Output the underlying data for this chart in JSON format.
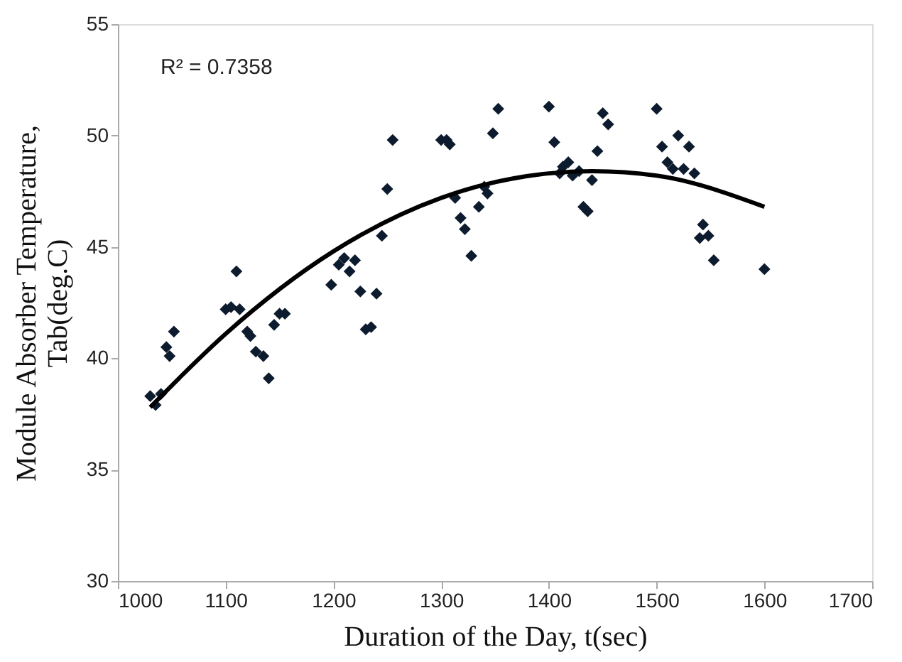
{
  "chart_data": {
    "type": "scatter",
    "xlabel": "Duration of the Day, t(sec)",
    "ylabel": "Module Absorber Temperature,\nTab(deg.C)",
    "xlim": [
      1000,
      1700
    ],
    "xticks": [
      1000,
      1100,
      1200,
      1300,
      1400,
      1500,
      1600,
      1700
    ],
    "ylim": [
      30,
      55
    ],
    "yticks": [
      30,
      35,
      40,
      45,
      50,
      55
    ],
    "grid": false,
    "marker": "diamond",
    "annotations": [
      "R² = 0.7358"
    ],
    "series": [
      {
        "color": "#0d1b2e",
        "x": [
          1030,
          1035,
          1040,
          1045,
          1048,
          1052,
          1100,
          1105,
          1110,
          1113,
          1120,
          1123,
          1128,
          1135,
          1140,
          1145,
          1150,
          1155,
          1198,
          1205,
          1210,
          1215,
          1220,
          1225,
          1230,
          1235,
          1240,
          1245,
          1250,
          1255,
          1300,
          1305,
          1308,
          1313,
          1318,
          1322,
          1328,
          1335,
          1340,
          1343,
          1348,
          1353,
          1400,
          1405,
          1410,
          1413,
          1418,
          1422,
          1428,
          1432,
          1436,
          1440,
          1445,
          1450,
          1455,
          1500,
          1505,
          1510,
          1515,
          1520,
          1525,
          1530,
          1535,
          1540,
          1543,
          1548,
          1553,
          1600
        ],
        "values": [
          38.3,
          37.9,
          38.4,
          40.5,
          40.1,
          41.2,
          42.2,
          42.3,
          43.9,
          42.2,
          41.2,
          41.0,
          40.3,
          40.1,
          39.1,
          41.5,
          42.0,
          42.0,
          43.3,
          44.2,
          44.5,
          43.9,
          44.4,
          43.0,
          41.3,
          41.4,
          42.9,
          45.5,
          47.6,
          49.8,
          49.8,
          49.8,
          49.6,
          47.2,
          46.3,
          45.8,
          44.6,
          46.8,
          47.7,
          47.4,
          50.1,
          51.2,
          51.3,
          49.7,
          48.3,
          48.6,
          48.8,
          48.2,
          48.4,
          46.8,
          46.6,
          48.0,
          49.3,
          51.0,
          50.5,
          51.2,
          49.5,
          48.8,
          48.5,
          50.0,
          48.5,
          49.5,
          48.3,
          45.4,
          46.0,
          45.5,
          44.4,
          44.0
        ]
      },
      {
        "type": "line",
        "color": "#000000",
        "marker": "none",
        "x": [
          1030,
          1100,
          1200,
          1300,
          1400,
          1440,
          1500,
          1600
        ],
        "values": [
          37.8,
          41.1,
          44.8,
          47.2,
          48.3,
          48.4,
          48.2,
          46.8
        ]
      }
    ]
  }
}
